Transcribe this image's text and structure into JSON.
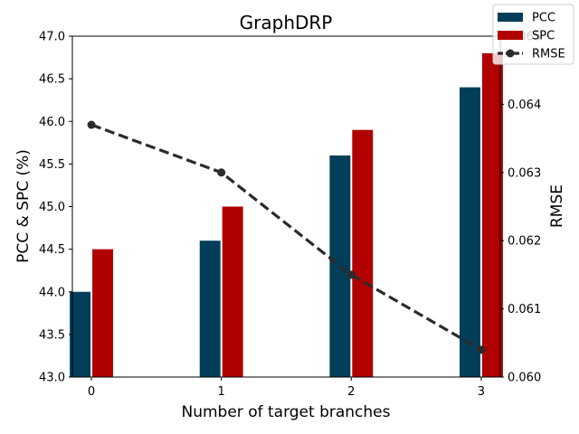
{
  "chart_data": {
    "type": "bar",
    "title": "GraphDRP",
    "xlabel": "Number of target branches",
    "ylabel": "PCC & SPC (%)",
    "y2label": "RMSE",
    "categories": [
      "0",
      "1",
      "2",
      "3"
    ],
    "ylim": [
      43.0,
      47.0
    ],
    "y2lim": [
      0.06,
      0.065
    ],
    "yticks": [
      "43.0",
      "43.5",
      "44.0",
      "44.5",
      "45.0",
      "45.5",
      "46.0",
      "46.5",
      "47.0"
    ],
    "y2ticks": [
      "0.060",
      "0.061",
      "0.062",
      "0.063",
      "0.064",
      "0.065"
    ],
    "series": [
      {
        "name": "PCC",
        "type": "bar",
        "axis": "left",
        "color": "#023e5a",
        "values": [
          44.0,
          44.6,
          45.6,
          46.4
        ]
      },
      {
        "name": "SPC",
        "type": "bar",
        "axis": "left",
        "color": "#b00000",
        "values": [
          44.5,
          45.0,
          45.9,
          46.8
        ]
      },
      {
        "name": "RMSE",
        "type": "line",
        "axis": "right",
        "style": "dashed",
        "marker": "circle",
        "color": "#2b2b2b",
        "values": [
          0.0637,
          0.063,
          0.0615,
          0.0604
        ]
      }
    ],
    "legend": "top-right",
    "grid": false
  }
}
